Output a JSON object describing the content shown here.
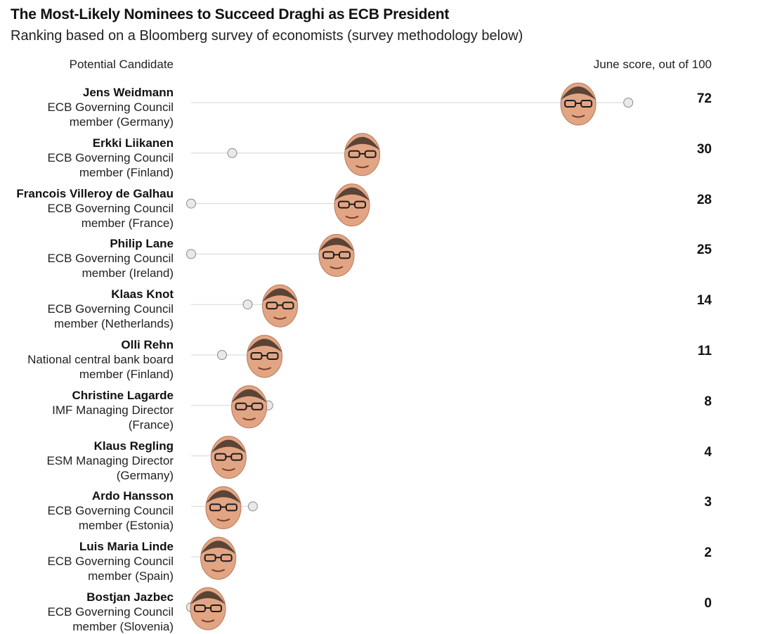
{
  "chart_data": {
    "type": "dot-line",
    "title": "The Most-Likely Nominees to Succeed Draghi as ECB President",
    "subtitle": "Ranking based on a Bloomberg survey of economists (survey methodology below)",
    "left_header": "Potential Candidate",
    "right_header": "June score, out of 100",
    "xlim": [
      0,
      100
    ],
    "series": [
      {
        "name": "June score",
        "values": [
          72,
          30,
          28,
          25,
          14,
          11,
          8,
          4,
          3,
          2,
          0
        ]
      },
      {
        "name": "Prior score (grey dot)",
        "values": [
          85,
          8,
          0,
          0,
          11,
          6,
          15,
          7,
          12,
          5,
          0
        ]
      }
    ],
    "candidates": [
      {
        "name": "Jens Weidmann",
        "role": "ECB Governing Council",
        "detail": "member (Germany)",
        "score": "72"
      },
      {
        "name": "Erkki Liikanen",
        "role": "ECB Governing Council",
        "detail": "member (Finland)",
        "score": "30"
      },
      {
        "name": "Francois Villeroy de Galhau",
        "role": "ECB Governing Council",
        "detail": "member (France)",
        "score": "28"
      },
      {
        "name": "Philip Lane",
        "role": "ECB Governing Council",
        "detail": "member (Ireland)",
        "score": "25"
      },
      {
        "name": "Klaas Knot",
        "role": "ECB Governing Council",
        "detail": "member (Netherlands)",
        "score": "14"
      },
      {
        "name": "Olli Rehn",
        "role": "National central bank board",
        "detail": "member (Finland)",
        "score": "11"
      },
      {
        "name": "Christine Lagarde",
        "role": "IMF Managing Director",
        "detail": "(France)",
        "score": "8"
      },
      {
        "name": "Klaus Regling",
        "role": "ESM Managing Director",
        "detail": "(Germany)",
        "score": "4"
      },
      {
        "name": "Ardo Hansson",
        "role": "ECB Governing Council",
        "detail": "member (Estonia)",
        "score": "3"
      },
      {
        "name": "Luis Maria Linde",
        "role": "ECB Governing Council",
        "detail": "member (Spain)",
        "score": "2"
      },
      {
        "name": "Bostjan Jazbec",
        "role": "ECB Governing Council",
        "detail": "member (Slovenia)",
        "score": "0"
      }
    ],
    "colors": {
      "line": "#d5d5d5",
      "dot_fill": "#e9e9e9",
      "dot_stroke": "#8a8a8a",
      "face_skin": "#e2a584",
      "face_dark": "#3a2a22",
      "glasses": "#1c1c1c"
    }
  }
}
